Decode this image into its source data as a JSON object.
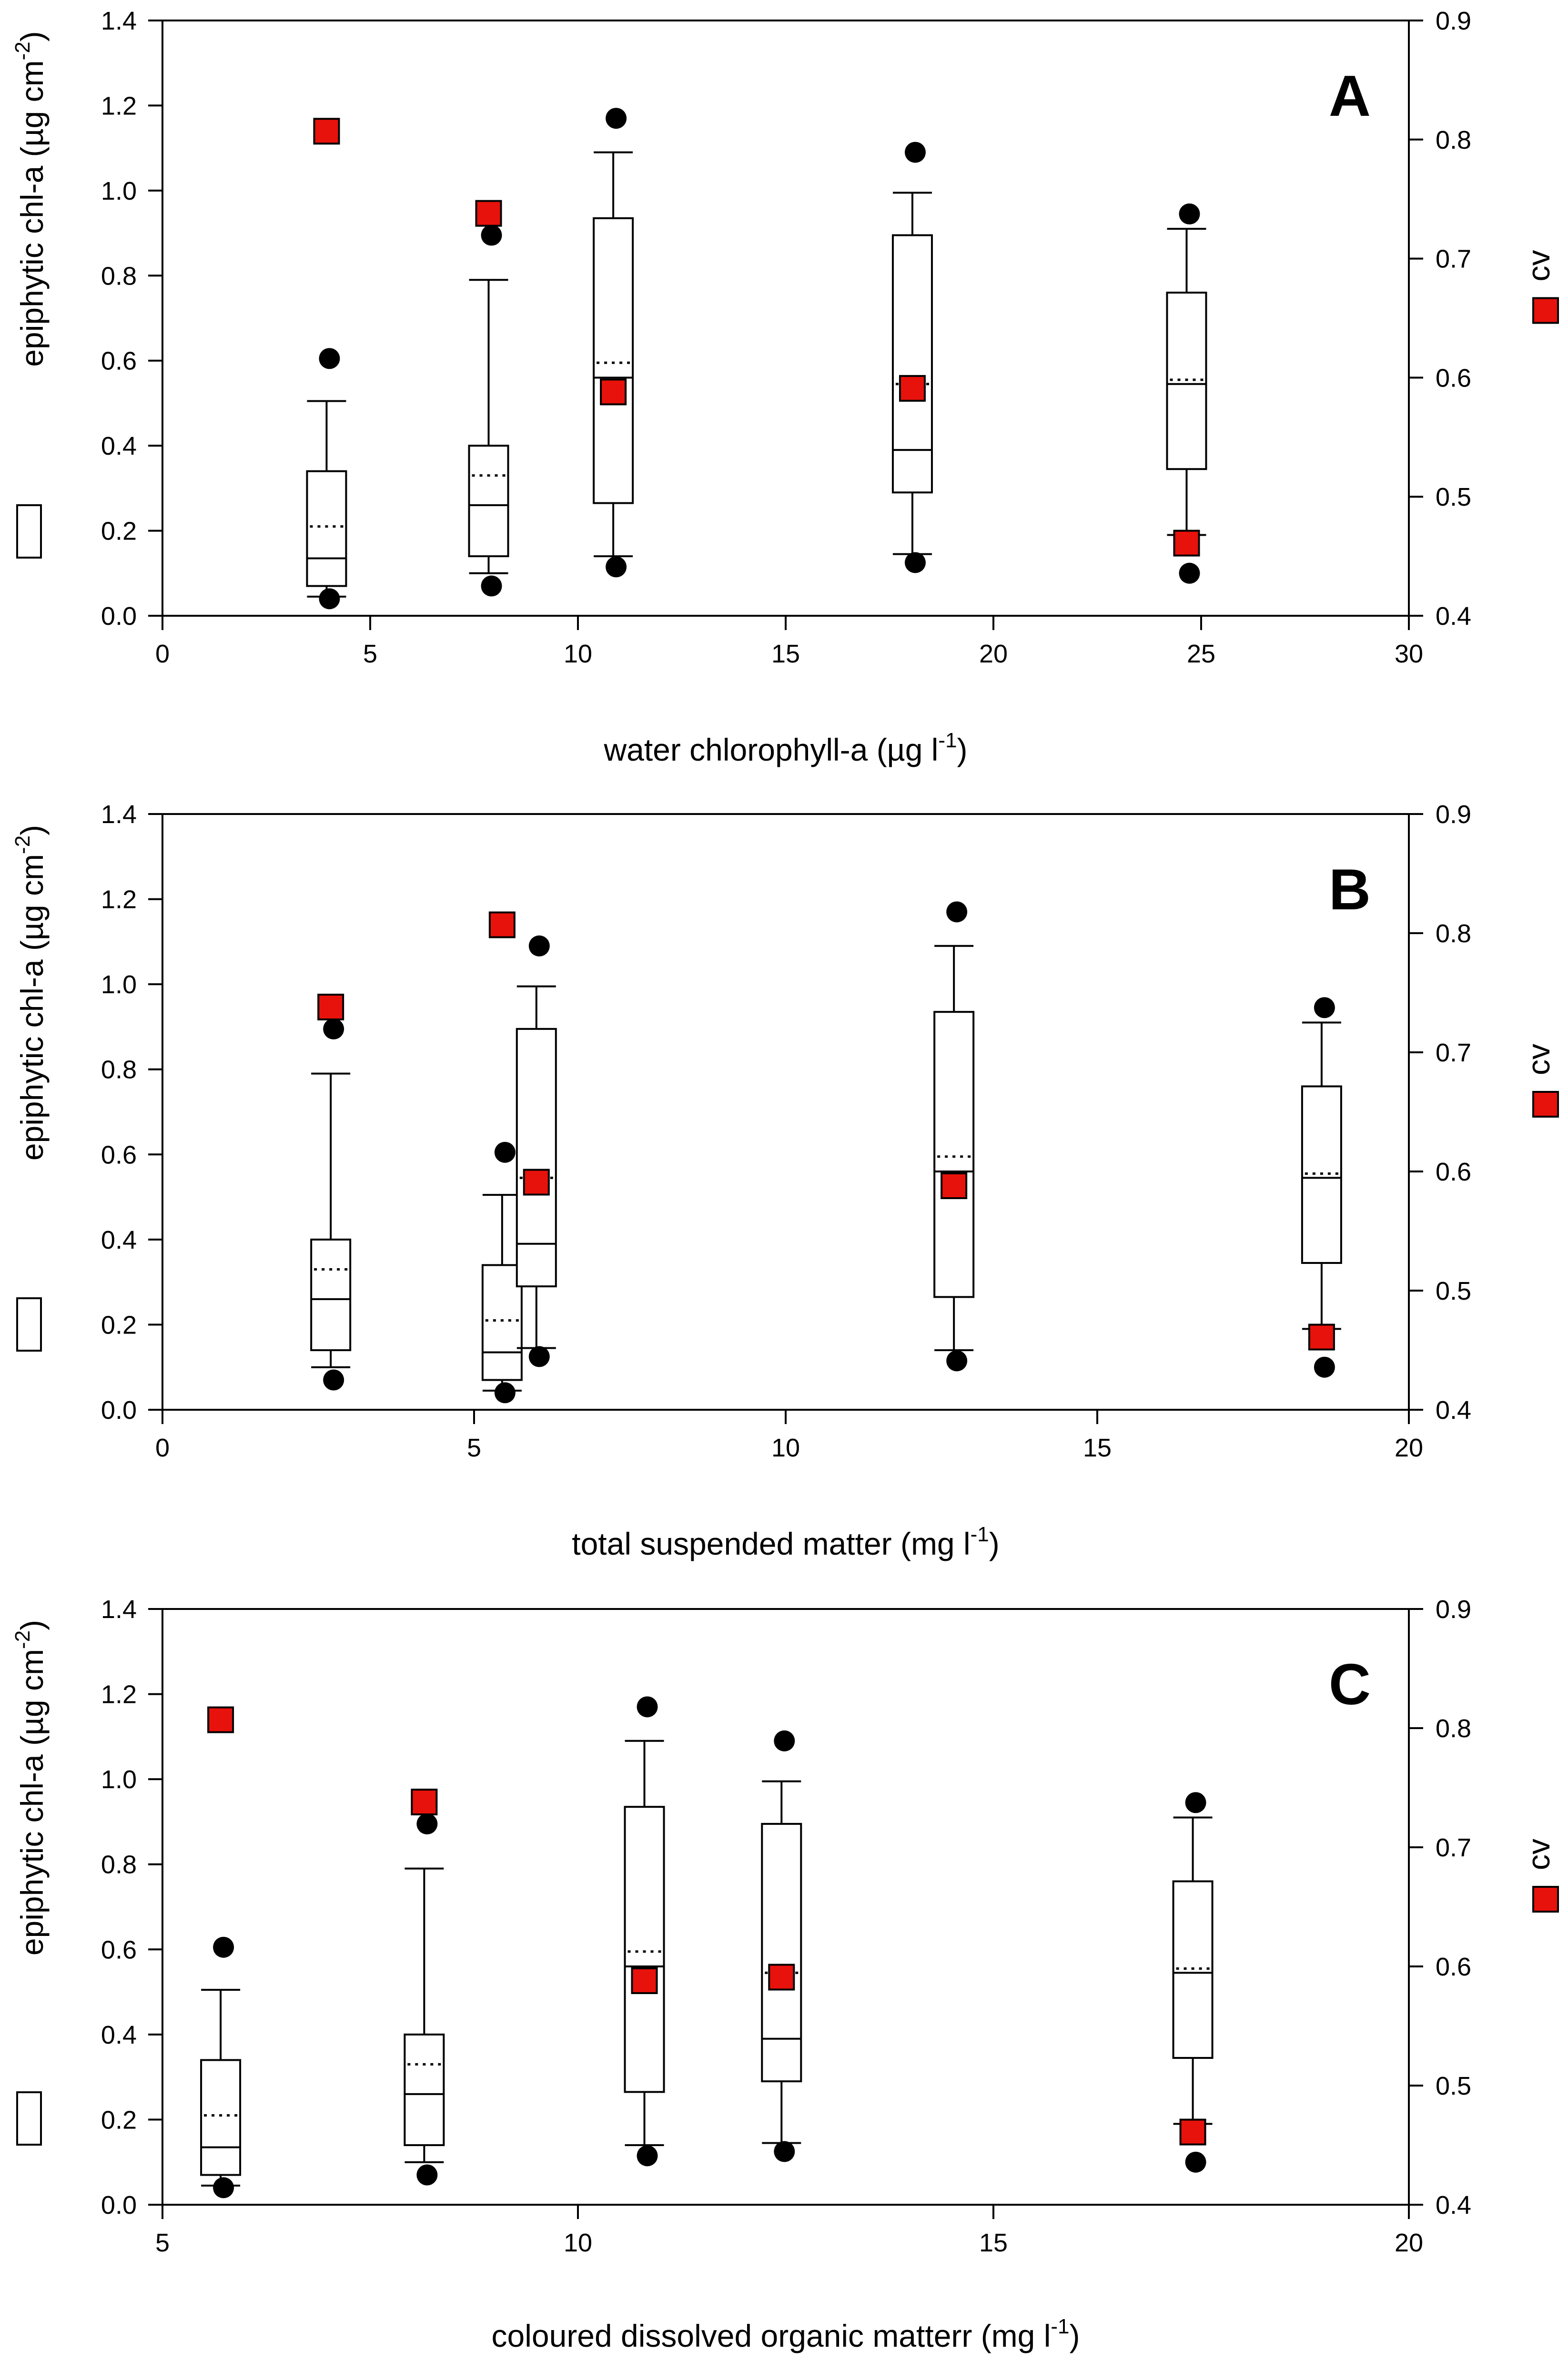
{
  "chart_data": [
    {
      "type": "boxplot",
      "panel_label": "A",
      "xlabel": "water chlorophyll-a (µg l",
      "xlabel_sup": "-1",
      "xlabel_close": ")",
      "ylabel": "epiphytic chl-a (µg cm",
      "ylabel_sup": "-2",
      "ylabel_close": ")",
      "y2label": "cv",
      "xlim": [
        0,
        30
      ],
      "x_ticks": [
        "0",
        "5",
        "10",
        "15",
        "20",
        "25",
        "30"
      ],
      "ylim": [
        0,
        1.4
      ],
      "y_ticks": [
        "0.0",
        "0.2",
        "0.4",
        "0.6",
        "0.8",
        "1.0",
        "1.2",
        "1.4"
      ],
      "y2lim": [
        0.4,
        0.9
      ],
      "y2_ticks": [
        "0.4",
        "0.5",
        "0.6",
        "0.7",
        "0.8",
        "0.9"
      ],
      "boxes": [
        {
          "x": 3.95,
          "whislo": 0.045,
          "q1": 0.07,
          "med": 0.135,
          "mean": 0.21,
          "q3": 0.34,
          "whishi": 0.505,
          "fliers": [
            0.04,
            0.605
          ],
          "cv": 0.807
        },
        {
          "x": 7.85,
          "whislo": 0.1,
          "q1": 0.14,
          "med": 0.26,
          "mean": 0.33,
          "q3": 0.4,
          "whishi": 0.79,
          "fliers": [
            0.07,
            0.895
          ],
          "cv": 0.738
        },
        {
          "x": 10.85,
          "whislo": 0.14,
          "q1": 0.265,
          "med": 0.56,
          "mean": 0.595,
          "q3": 0.935,
          "whishi": 1.09,
          "fliers": [
            0.115,
            1.17
          ],
          "cv": 0.588
        },
        {
          "x": 18.05,
          "whislo": 0.145,
          "q1": 0.29,
          "med": 0.39,
          "mean": 0.545,
          "q3": 0.895,
          "whishi": 0.995,
          "fliers": [
            0.125,
            1.09
          ],
          "cv": 0.591
        },
        {
          "x": 24.65,
          "whislo": 0.19,
          "q1": 0.345,
          "med": 0.545,
          "mean": 0.555,
          "q3": 0.76,
          "whishi": 0.91,
          "fliers": [
            0.1,
            0.945
          ],
          "cv": 0.461
        }
      ]
    },
    {
      "type": "boxplot",
      "panel_label": "B",
      "xlabel": "total suspended matter (mg l",
      "xlabel_sup": "-1",
      "xlabel_close": ")",
      "ylabel": "epiphytic chl-a (µg cm",
      "ylabel_sup": "-2",
      "ylabel_close": ")",
      "y2label": "cv",
      "xlim": [
        0,
        20
      ],
      "x_ticks": [
        "0",
        "5",
        "10",
        "15",
        "20"
      ],
      "ylim": [
        0,
        1.4
      ],
      "y_ticks": [
        "0.0",
        "0.2",
        "0.4",
        "0.6",
        "0.8",
        "1.0",
        "1.2",
        "1.4"
      ],
      "y2lim": [
        0.4,
        0.9
      ],
      "y2_ticks": [
        "0.4",
        "0.5",
        "0.6",
        "0.7",
        "0.8",
        "0.9"
      ],
      "boxes": [
        {
          "x": 2.7,
          "whislo": 0.1,
          "q1": 0.14,
          "med": 0.26,
          "mean": 0.33,
          "q3": 0.4,
          "whishi": 0.79,
          "fliers": [
            0.07,
            0.895
          ],
          "cv": 0.738
        },
        {
          "x": 5.45,
          "whislo": 0.045,
          "q1": 0.07,
          "med": 0.135,
          "mean": 0.21,
          "q3": 0.34,
          "whishi": 0.505,
          "fliers": [
            0.04,
            0.605
          ],
          "cv": 0.807
        },
        {
          "x": 6.0,
          "whislo": 0.145,
          "q1": 0.29,
          "med": 0.39,
          "mean": 0.545,
          "q3": 0.895,
          "whishi": 0.995,
          "fliers": [
            0.125,
            1.09
          ],
          "cv": 0.591
        },
        {
          "x": 12.7,
          "whislo": 0.14,
          "q1": 0.265,
          "med": 0.56,
          "mean": 0.595,
          "q3": 0.935,
          "whishi": 1.09,
          "fliers": [
            0.115,
            1.17
          ],
          "cv": 0.588
        },
        {
          "x": 18.6,
          "whislo": 0.19,
          "q1": 0.345,
          "med": 0.545,
          "mean": 0.555,
          "q3": 0.76,
          "whishi": 0.91,
          "fliers": [
            0.1,
            0.945
          ],
          "cv": 0.461
        }
      ]
    },
    {
      "type": "boxplot",
      "panel_label": "C",
      "xlabel": "coloured dissolved organic matterr (mg l",
      "xlabel_sup": "-1",
      "xlabel_close": ")",
      "ylabel": "epiphytic chl-a (µg cm",
      "ylabel_sup": "-2",
      "ylabel_close": ")",
      "y2label": "cv",
      "xlim": [
        5,
        20
      ],
      "x_ticks": [
        "5",
        "10",
        "15",
        "20"
      ],
      "ylim": [
        0,
        1.4
      ],
      "y_ticks": [
        "0.0",
        "0.2",
        "0.4",
        "0.6",
        "0.8",
        "1.0",
        "1.2",
        "1.4"
      ],
      "y2lim": [
        0.4,
        0.9
      ],
      "y2_ticks": [
        "0.4",
        "0.5",
        "0.6",
        "0.7",
        "0.8",
        "0.9"
      ],
      "boxes": [
        {
          "x": 5.7,
          "whislo": 0.045,
          "q1": 0.07,
          "med": 0.135,
          "mean": 0.21,
          "q3": 0.34,
          "whishi": 0.505,
          "fliers": [
            0.04,
            0.605
          ],
          "cv": 0.807
        },
        {
          "x": 8.15,
          "whislo": 0.1,
          "q1": 0.14,
          "med": 0.26,
          "mean": 0.33,
          "q3": 0.4,
          "whishi": 0.79,
          "fliers": [
            0.07,
            0.895
          ],
          "cv": 0.738
        },
        {
          "x": 10.8,
          "whislo": 0.14,
          "q1": 0.265,
          "med": 0.56,
          "mean": 0.595,
          "q3": 0.935,
          "whishi": 1.09,
          "fliers": [
            0.115,
            1.17
          ],
          "cv": 0.588
        },
        {
          "x": 12.45,
          "whislo": 0.145,
          "q1": 0.29,
          "med": 0.39,
          "mean": 0.545,
          "q3": 0.895,
          "whishi": 0.995,
          "fliers": [
            0.125,
            1.09
          ],
          "cv": 0.591
        },
        {
          "x": 17.4,
          "whislo": 0.19,
          "q1": 0.345,
          "med": 0.545,
          "mean": 0.555,
          "q3": 0.76,
          "whishi": 0.91,
          "fliers": [
            0.1,
            0.945
          ],
          "cv": 0.461
        }
      ]
    }
  ]
}
